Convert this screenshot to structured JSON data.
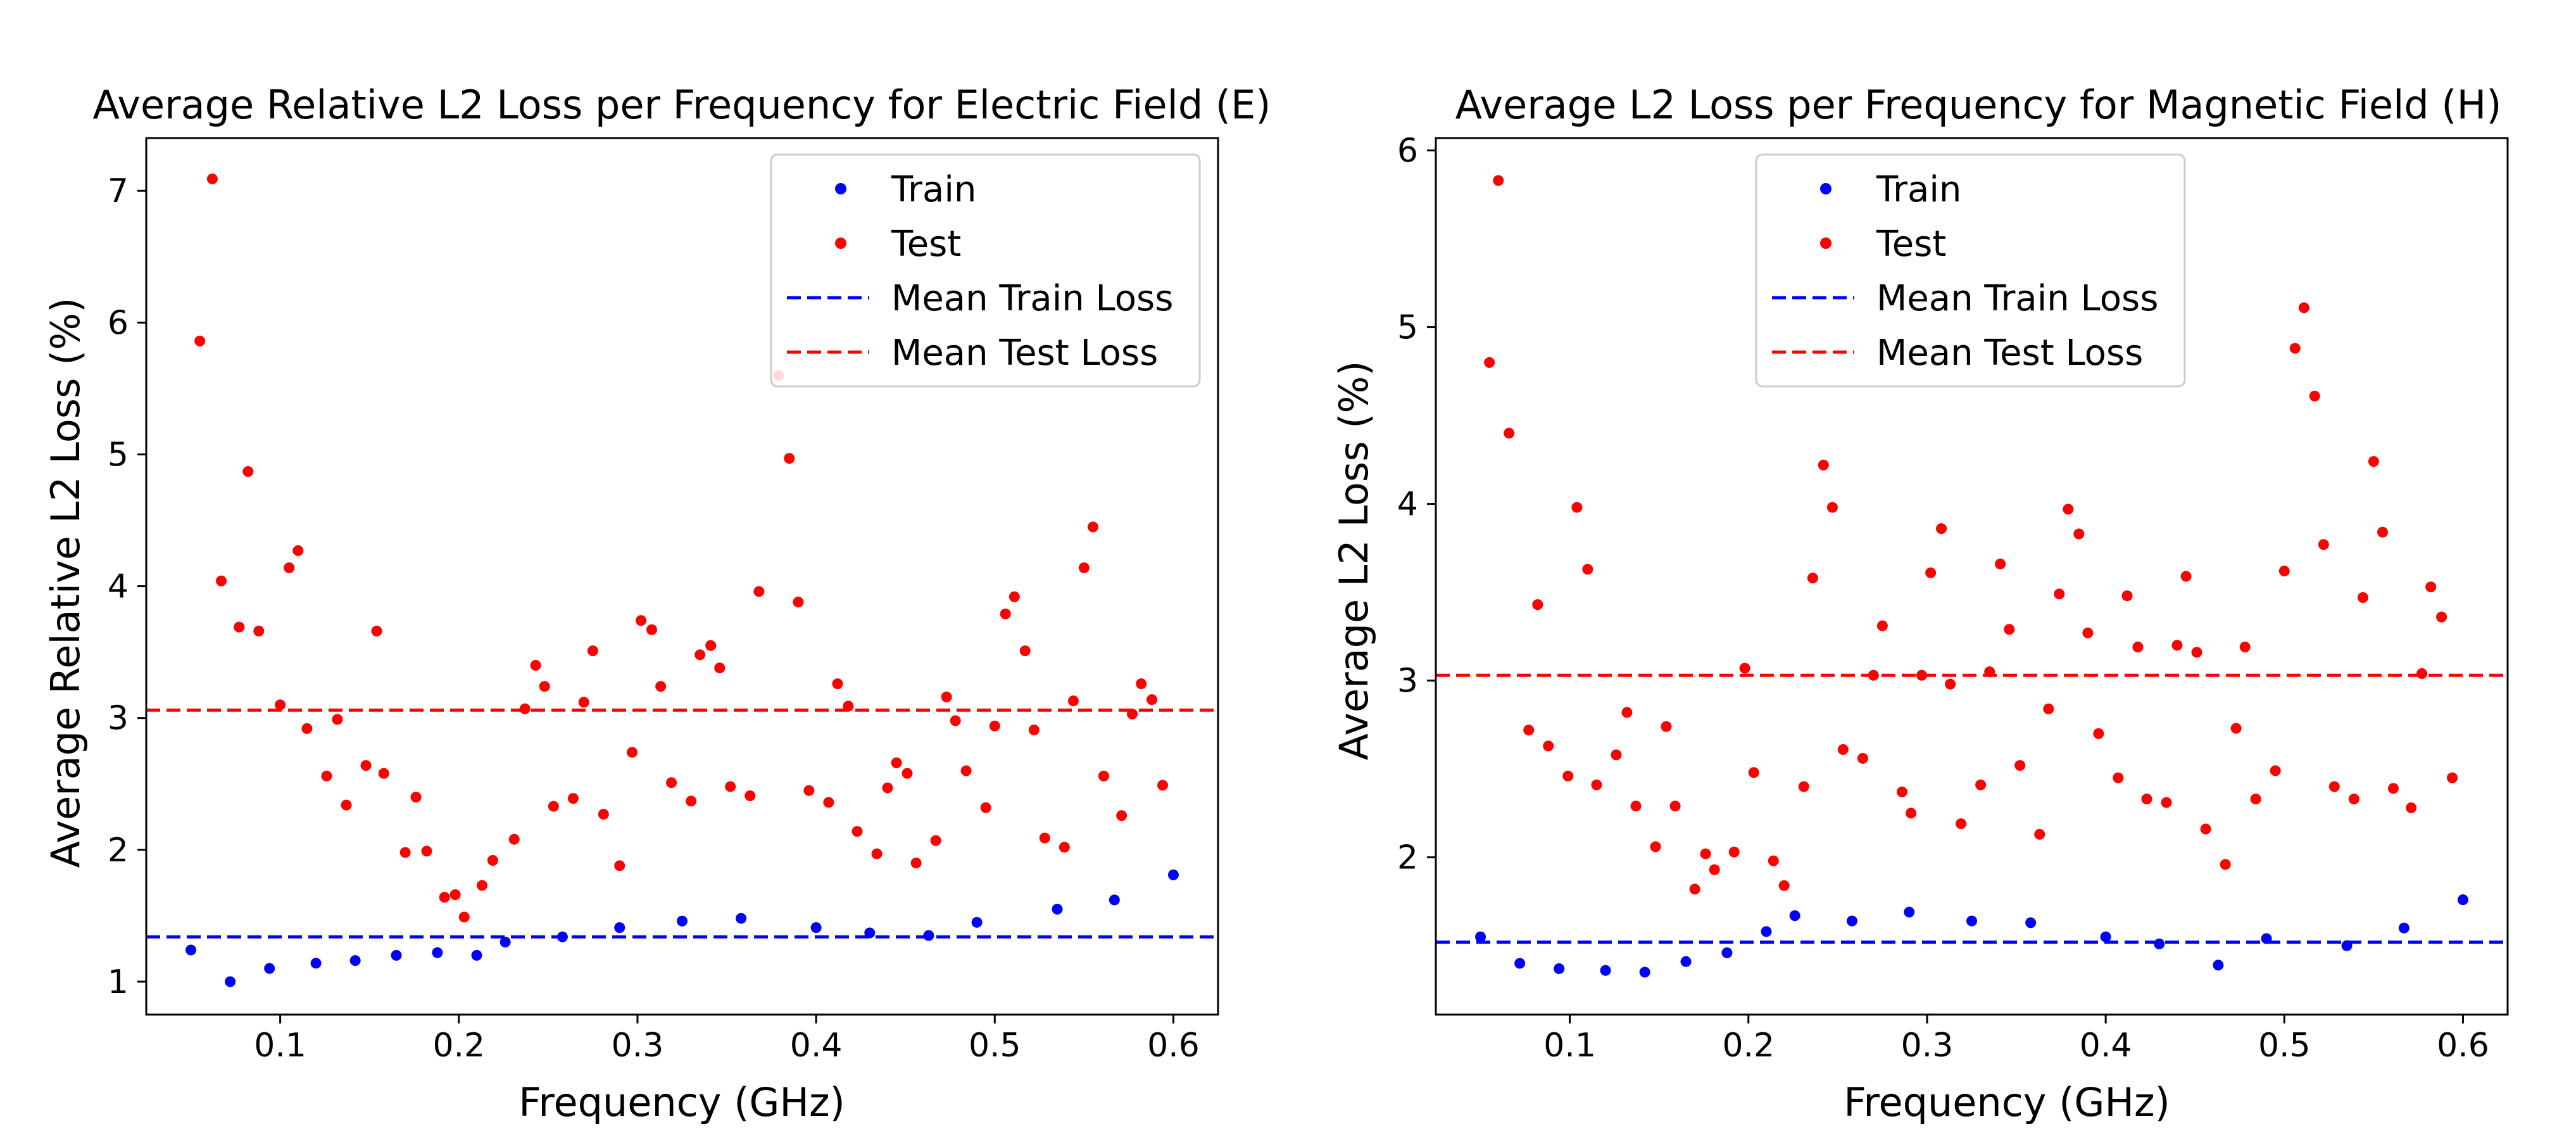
{
  "chart_data": [
    {
      "type": "scatter",
      "title": "Average Relative L2 Loss per Frequency for Electric Field (E)",
      "xlabel": "Frequency (GHz)",
      "ylabel": "Average Relative L2 Loss (%)",
      "xlim": [
        0.025,
        0.625
      ],
      "ylim": [
        0.75,
        7.4
      ],
      "xticks": [
        0.1,
        0.2,
        0.3,
        0.4,
        0.5,
        0.6
      ],
      "xtick_labels": [
        "0.1",
        "0.2",
        "0.3",
        "0.4",
        "0.5",
        "0.6"
      ],
      "yticks": [
        1,
        2,
        3,
        4,
        5,
        6,
        7
      ],
      "ytick_labels": [
        "1",
        "2",
        "3",
        "4",
        "5",
        "6",
        "7"
      ],
      "legend_position": "top-right",
      "legend": [
        "Train",
        "Test",
        "Mean Train Loss",
        "Mean Test Loss"
      ],
      "series": [
        {
          "name": "Train",
          "kind": "scatter",
          "color": "#0000ff",
          "x": [
            0.05,
            0.072,
            0.094,
            0.12,
            0.142,
            0.165,
            0.188,
            0.21,
            0.226,
            0.258,
            0.29,
            0.325,
            0.358,
            0.4,
            0.43,
            0.463,
            0.49,
            0.535,
            0.567,
            0.6
          ],
          "y": [
            1.24,
            1.0,
            1.1,
            1.14,
            1.16,
            1.2,
            1.22,
            1.2,
            1.3,
            1.34,
            1.41,
            1.46,
            1.48,
            1.41,
            1.37,
            1.35,
            1.45,
            1.55,
            1.62,
            1.81
          ]
        },
        {
          "name": "Test",
          "kind": "scatter",
          "color": "#ff0000",
          "x": [
            0.055,
            0.062,
            0.067,
            0.077,
            0.082,
            0.088,
            0.1,
            0.105,
            0.11,
            0.115,
            0.126,
            0.132,
            0.137,
            0.148,
            0.154,
            0.158,
            0.17,
            0.176,
            0.182,
            0.192,
            0.198,
            0.203,
            0.213,
            0.219,
            0.231,
            0.237,
            0.243,
            0.248,
            0.253,
            0.264,
            0.27,
            0.275,
            0.281,
            0.29,
            0.297,
            0.302,
            0.308,
            0.313,
            0.319,
            0.33,
            0.335,
            0.341,
            0.346,
            0.352,
            0.363,
            0.368,
            0.379,
            0.385,
            0.39,
            0.396,
            0.407,
            0.412,
            0.418,
            0.423,
            0.434,
            0.44,
            0.445,
            0.451,
            0.456,
            0.467,
            0.473,
            0.478,
            0.484,
            0.495,
            0.5,
            0.506,
            0.511,
            0.517,
            0.522,
            0.528,
            0.539,
            0.544,
            0.55,
            0.555,
            0.561,
            0.571,
            0.577,
            0.582,
            0.588,
            0.594
          ],
          "y": [
            5.86,
            7.09,
            4.04,
            3.69,
            4.87,
            3.66,
            3.1,
            4.14,
            4.27,
            2.92,
            2.56,
            2.99,
            2.34,
            2.64,
            3.66,
            2.58,
            1.98,
            2.4,
            1.99,
            1.64,
            1.66,
            1.49,
            1.73,
            1.92,
            2.08,
            3.07,
            3.4,
            3.24,
            2.33,
            2.39,
            3.12,
            3.51,
            2.27,
            1.88,
            2.74,
            3.74,
            3.67,
            3.24,
            2.51,
            2.37,
            3.48,
            3.55,
            3.38,
            2.48,
            2.41,
            3.96,
            5.6,
            4.97,
            3.88,
            2.45,
            2.36,
            3.26,
            3.09,
            2.14,
            1.97,
            2.47,
            2.66,
            2.58,
            1.9,
            2.07,
            3.16,
            2.98,
            2.6,
            2.32,
            2.94,
            3.79,
            3.92,
            3.51,
            2.91,
            2.09,
            2.02,
            3.13,
            4.14,
            4.45,
            2.56,
            2.26,
            3.03,
            3.26,
            3.14,
            2.49
          ]
        },
        {
          "name": "Mean Train Loss",
          "kind": "hline",
          "color": "#0000ff",
          "y": 1.34
        },
        {
          "name": "Mean Test Loss",
          "kind": "hline",
          "color": "#ff0000",
          "y": 3.06
        }
      ]
    },
    {
      "type": "scatter",
      "title": "Average L2 Loss per Frequency for Magnetic Field (H)",
      "xlabel": "Frequency (GHz)",
      "ylabel": "Average L2 Loss (%)",
      "xlim": [
        0.025,
        0.625
      ],
      "ylim": [
        1.11,
        6.07
      ],
      "xticks": [
        0.1,
        0.2,
        0.3,
        0.4,
        0.5,
        0.6
      ],
      "xtick_labels": [
        "0.1",
        "0.2",
        "0.3",
        "0.4",
        "0.5",
        "0.6"
      ],
      "yticks": [
        2,
        3,
        4,
        5,
        6
      ],
      "ytick_labels": [
        "2",
        "3",
        "4",
        "5",
        "6"
      ],
      "legend_position": "top-center",
      "legend": [
        "Train",
        "Test",
        "Mean Train Loss",
        "Mean Test Loss"
      ],
      "series": [
        {
          "name": "Train",
          "kind": "scatter",
          "color": "#0000ff",
          "x": [
            0.05,
            0.072,
            0.094,
            0.12,
            0.142,
            0.165,
            0.188,
            0.21,
            0.226,
            0.258,
            0.29,
            0.325,
            0.358,
            0.4,
            0.43,
            0.463,
            0.49,
            0.535,
            0.567,
            0.6
          ],
          "y": [
            1.55,
            1.4,
            1.37,
            1.36,
            1.35,
            1.41,
            1.46,
            1.58,
            1.67,
            1.64,
            1.69,
            1.64,
            1.63,
            1.55,
            1.51,
            1.39,
            1.54,
            1.5,
            1.6,
            1.76
          ]
        },
        {
          "name": "Test",
          "kind": "scatter",
          "color": "#ff0000",
          "x": [
            0.055,
            0.06,
            0.066,
            0.077,
            0.082,
            0.088,
            0.099,
            0.104,
            0.11,
            0.115,
            0.126,
            0.132,
            0.137,
            0.148,
            0.154,
            0.159,
            0.17,
            0.176,
            0.181,
            0.192,
            0.198,
            0.203,
            0.214,
            0.22,
            0.231,
            0.236,
            0.242,
            0.247,
            0.253,
            0.264,
            0.27,
            0.275,
            0.286,
            0.291,
            0.297,
            0.302,
            0.308,
            0.313,
            0.319,
            0.33,
            0.335,
            0.341,
            0.346,
            0.352,
            0.363,
            0.368,
            0.374,
            0.379,
            0.385,
            0.39,
            0.396,
            0.407,
            0.412,
            0.418,
            0.423,
            0.434,
            0.44,
            0.445,
            0.451,
            0.456,
            0.467,
            0.473,
            0.478,
            0.484,
            0.495,
            0.5,
            0.506,
            0.511,
            0.517,
            0.522,
            0.528,
            0.539,
            0.544,
            0.55,
            0.555,
            0.561,
            0.571,
            0.577,
            0.582,
            0.588,
            0.594
          ],
          "y": [
            4.8,
            5.83,
            4.4,
            2.72,
            3.43,
            2.63,
            2.46,
            3.98,
            3.63,
            2.41,
            2.58,
            2.82,
            2.29,
            2.06,
            2.74,
            2.29,
            1.82,
            2.02,
            1.93,
            2.03,
            3.07,
            2.48,
            1.98,
            1.84,
            2.4,
            3.58,
            4.22,
            3.98,
            2.61,
            2.56,
            3.03,
            3.31,
            2.37,
            2.25,
            3.03,
            3.61,
            3.86,
            2.98,
            2.19,
            2.41,
            3.05,
            3.66,
            3.29,
            2.52,
            2.13,
            2.84,
            3.49,
            3.97,
            3.83,
            3.27,
            2.7,
            2.45,
            3.48,
            3.19,
            2.33,
            2.31,
            3.2,
            3.59,
            3.16,
            2.16,
            1.96,
            2.73,
            3.19,
            2.33,
            2.49,
            3.62,
            4.88,
            5.11,
            4.61,
            3.77,
            2.4,
            2.33,
            3.47,
            4.24,
            3.84,
            2.39,
            2.28,
            3.04,
            3.53,
            3.36,
            2.45
          ]
        },
        {
          "name": "Mean Train Loss",
          "kind": "hline",
          "color": "#0000ff",
          "y": 1.52
        },
        {
          "name": "Mean Test Loss",
          "kind": "hline",
          "color": "#ff0000",
          "y": 3.03
        }
      ]
    }
  ]
}
